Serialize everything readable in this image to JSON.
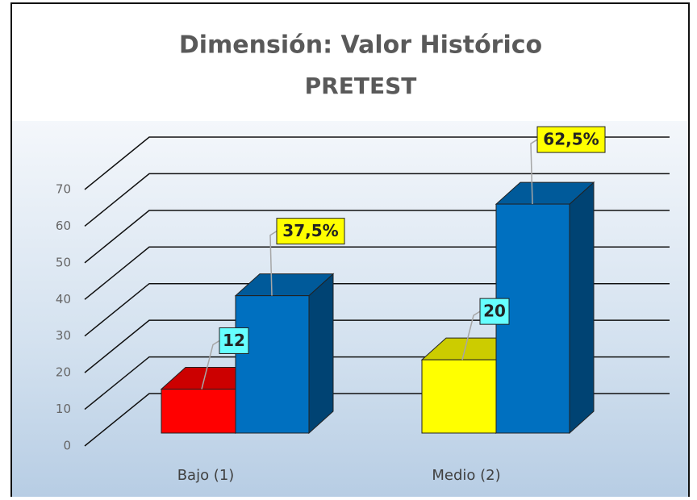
{
  "chart_data": {
    "type": "bar3d",
    "title": "Dimensión: Valor Histórico",
    "subtitle": "PRETEST",
    "categories": [
      "Bajo (1)",
      "Medio (2)"
    ],
    "series": [
      {
        "colors": [
          "#ff0000",
          "#ffff00"
        ],
        "values": [
          12,
          20
        ],
        "label_color": "#66ffff"
      },
      {
        "color": "#0070c0",
        "values": [
          37.5,
          62.5
        ],
        "value_labels": [
          "37,5%",
          "62,5%"
        ],
        "label_color": "#ffff00"
      }
    ],
    "ylim": [
      0,
      70
    ],
    "yticks": [
      0,
      10,
      20,
      30,
      40,
      50,
      60,
      70
    ],
    "grid": true
  }
}
